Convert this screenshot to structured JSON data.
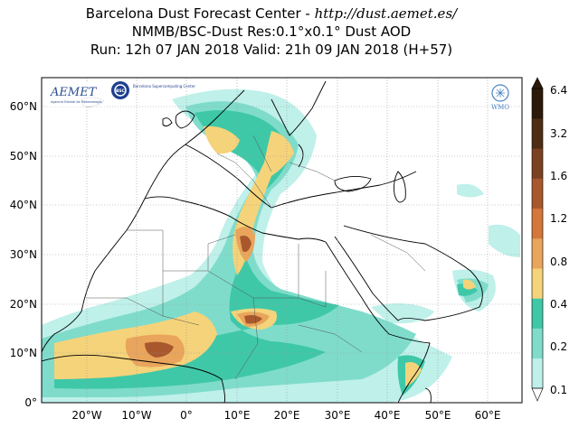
{
  "header": {
    "line1_prefix": "Barcelona Dust Forecast Center - ",
    "line1_url": "http://dust.aemet.es/",
    "line2": "NMMB/BSC-Dust   Res:0.1°x0.1°   Dust AOD",
    "line3": "Run: 12h 07 JAN 2018   Valid: 21h 09 JAN 2018 (H+57)"
  },
  "logos": {
    "aemet": "AEMET",
    "aemet_sub": "Agencia Estatal de Meteorología",
    "bsc": "BSC",
    "bsc_sub": "Barcelona Supercomputing Center",
    "wmo": "WMO"
  },
  "axes": {
    "x_ticks": [
      "20°W",
      "10°W",
      "0°",
      "10°E",
      "20°E",
      "30°E",
      "40°E",
      "50°E",
      "60°E"
    ],
    "y_ticks": [
      "0°",
      "10°N",
      "20°N",
      "30°N",
      "40°N",
      "50°N",
      "60°N"
    ]
  },
  "colorbar": {
    "labels": [
      "0.1",
      "0.2",
      "0.4",
      "0.8",
      "1.2",
      "1.6",
      "3.2",
      "6.4"
    ],
    "colors": [
      "#bff0ea",
      "#7fdccb",
      "#3fc8a8",
      "#f5d37a",
      "#e9a55c",
      "#d4773a",
      "#a8582c",
      "#7a4220",
      "#4e2d14",
      "#2b1a0a"
    ]
  },
  "colors": {
    "land": "#ffffff",
    "ocean": "#ffffff",
    "coast": "#000000",
    "border": "#555555",
    "grid": "#999999"
  }
}
